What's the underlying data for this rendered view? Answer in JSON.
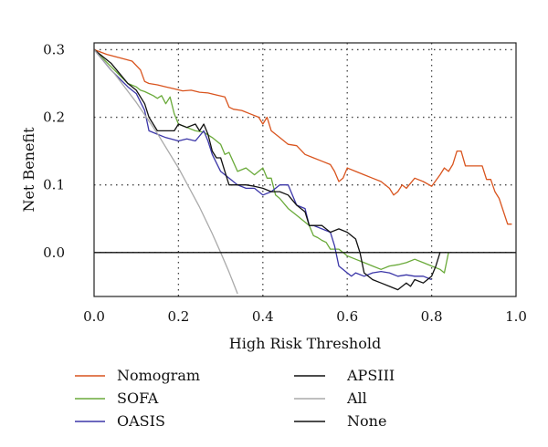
{
  "chart_data": {
    "type": "line",
    "xlabel": "High Risk Threshold",
    "ylabel": "Net Benefit",
    "xlim": [
      0.0,
      1.0
    ],
    "ylim": [
      -0.065,
      0.31
    ],
    "xticks": [
      "0.0",
      "0.2",
      "0.4",
      "0.6",
      "0.8",
      "1.0"
    ],
    "xtick_values": [
      0.0,
      0.2,
      0.4,
      0.6,
      0.8,
      1.0
    ],
    "yticks": [
      "0.0",
      "0.1",
      "0.2",
      "0.3"
    ],
    "ytick_values": [
      0.0,
      0.1,
      0.2,
      0.3
    ],
    "grid": true,
    "legend_placement": "bottom",
    "series": [
      {
        "name": "Nomogram",
        "color": "#d9541e",
        "x": [
          0,
          0.03,
          0.06,
          0.09,
          0.11,
          0.12,
          0.13,
          0.15,
          0.17,
          0.19,
          0.21,
          0.23,
          0.25,
          0.27,
          0.29,
          0.31,
          0.32,
          0.33,
          0.35,
          0.37,
          0.39,
          0.4,
          0.41,
          0.42,
          0.44,
          0.46,
          0.48,
          0.5,
          0.52,
          0.54,
          0.56,
          0.57,
          0.58,
          0.59,
          0.6,
          0.62,
          0.64,
          0.66,
          0.68,
          0.7,
          0.71,
          0.72,
          0.73,
          0.74,
          0.76,
          0.78,
          0.8,
          0.82,
          0.83,
          0.84,
          0.85,
          0.86,
          0.87,
          0.88,
          0.9,
          0.92,
          0.93,
          0.94,
          0.95,
          0.96,
          0.98,
          0.99
        ],
        "y": [
          0.3,
          0.293,
          0.288,
          0.283,
          0.27,
          0.253,
          0.25,
          0.248,
          0.245,
          0.242,
          0.239,
          0.24,
          0.237,
          0.236,
          0.233,
          0.23,
          0.215,
          0.212,
          0.21,
          0.205,
          0.2,
          0.19,
          0.2,
          0.18,
          0.17,
          0.16,
          0.158,
          0.145,
          0.14,
          0.135,
          0.13,
          0.12,
          0.105,
          0.11,
          0.125,
          0.12,
          0.115,
          0.11,
          0.105,
          0.095,
          0.085,
          0.09,
          0.1,
          0.095,
          0.11,
          0.105,
          0.098,
          0.115,
          0.125,
          0.12,
          0.13,
          0.15,
          0.15,
          0.128,
          0.128,
          0.128,
          0.108,
          0.108,
          0.09,
          0.08,
          0.042,
          0.042
        ]
      },
      {
        "name": "SOFA",
        "color": "#6aaa3a",
        "x": [
          0,
          0.04,
          0.08,
          0.1,
          0.11,
          0.12,
          0.13,
          0.14,
          0.15,
          0.16,
          0.17,
          0.18,
          0.19,
          0.2,
          0.22,
          0.24,
          0.26,
          0.28,
          0.3,
          0.31,
          0.32,
          0.34,
          0.36,
          0.38,
          0.39,
          0.4,
          0.41,
          0.42,
          0.43,
          0.44,
          0.46,
          0.48,
          0.5,
          0.51,
          0.52,
          0.53,
          0.54,
          0.55,
          0.56,
          0.58,
          0.6,
          0.62,
          0.64,
          0.66,
          0.68,
          0.7,
          0.72,
          0.74,
          0.76,
          0.78,
          0.8,
          0.82,
          0.83,
          0.84
        ],
        "y": [
          0.3,
          0.275,
          0.25,
          0.245,
          0.24,
          0.238,
          0.235,
          0.232,
          0.228,
          0.232,
          0.22,
          0.23,
          0.205,
          0.19,
          0.185,
          0.18,
          0.178,
          0.17,
          0.16,
          0.145,
          0.148,
          0.12,
          0.125,
          0.115,
          0.12,
          0.125,
          0.11,
          0.11,
          0.085,
          0.08,
          0.065,
          0.055,
          0.045,
          0.04,
          0.025,
          0.022,
          0.018,
          0.015,
          0.005,
          0.005,
          -0.005,
          -0.01,
          -0.015,
          -0.02,
          -0.025,
          -0.02,
          -0.018,
          -0.015,
          -0.01,
          -0.015,
          -0.02,
          -0.025,
          -0.03,
          0.0
        ]
      },
      {
        "name": "OASIS",
        "color": "#3b36a8",
        "x": [
          0,
          0.04,
          0.08,
          0.1,
          0.12,
          0.13,
          0.15,
          0.17,
          0.2,
          0.22,
          0.24,
          0.26,
          0.27,
          0.28,
          0.3,
          0.32,
          0.34,
          0.36,
          0.38,
          0.4,
          0.42,
          0.44,
          0.46,
          0.48,
          0.5,
          0.51,
          0.52,
          0.54,
          0.56,
          0.57,
          0.58,
          0.6,
          0.61,
          0.62,
          0.64,
          0.66,
          0.68,
          0.7,
          0.72,
          0.74,
          0.76,
          0.78,
          0.8
        ],
        "y": [
          0.3,
          0.27,
          0.245,
          0.235,
          0.21,
          0.18,
          0.175,
          0.17,
          0.165,
          0.168,
          0.165,
          0.18,
          0.165,
          0.145,
          0.12,
          0.11,
          0.1,
          0.095,
          0.095,
          0.085,
          0.09,
          0.1,
          0.1,
          0.07,
          0.065,
          0.04,
          0.04,
          0.035,
          0.03,
          0.01,
          -0.02,
          -0.03,
          -0.035,
          -0.03,
          -0.035,
          -0.03,
          -0.028,
          -0.03,
          -0.035,
          -0.033,
          -0.035,
          -0.035,
          -0.04
        ]
      },
      {
        "name": "APSIII",
        "color": "#111111",
        "x": [
          0,
          0.04,
          0.08,
          0.1,
          0.12,
          0.13,
          0.15,
          0.17,
          0.19,
          0.2,
          0.22,
          0.24,
          0.25,
          0.26,
          0.27,
          0.28,
          0.29,
          0.3,
          0.31,
          0.32,
          0.34,
          0.36,
          0.38,
          0.4,
          0.42,
          0.44,
          0.46,
          0.48,
          0.5,
          0.51,
          0.52,
          0.54,
          0.56,
          0.58,
          0.6,
          0.62,
          0.63,
          0.64,
          0.66,
          0.68,
          0.7,
          0.72,
          0.73,
          0.74,
          0.75,
          0.76,
          0.78,
          0.8,
          0.81,
          0.82
        ],
        "y": [
          0.3,
          0.28,
          0.25,
          0.24,
          0.22,
          0.2,
          0.18,
          0.18,
          0.18,
          0.19,
          0.185,
          0.19,
          0.18,
          0.19,
          0.175,
          0.15,
          0.14,
          0.14,
          0.12,
          0.1,
          0.1,
          0.1,
          0.098,
          0.095,
          0.09,
          0.09,
          0.085,
          0.07,
          0.06,
          0.04,
          0.04,
          0.04,
          0.03,
          0.035,
          0.03,
          0.02,
          0.0,
          -0.03,
          -0.04,
          -0.045,
          -0.05,
          -0.055,
          -0.05,
          -0.045,
          -0.05,
          -0.04,
          -0.045,
          -0.035,
          -0.02,
          0.0
        ]
      },
      {
        "name": "All",
        "color": "#aaaaaa",
        "x": [
          0,
          0.05,
          0.1,
          0.15,
          0.2,
          0.25,
          0.28,
          0.3,
          0.32,
          0.34
        ],
        "y": [
          0.3,
          0.263,
          0.222,
          0.176,
          0.125,
          0.067,
          0.028,
          0.0,
          -0.029,
          -0.061
        ]
      },
      {
        "name": "None",
        "color": "#111111",
        "x": [
          0,
          1.0
        ],
        "y": [
          0,
          0
        ]
      }
    ]
  }
}
